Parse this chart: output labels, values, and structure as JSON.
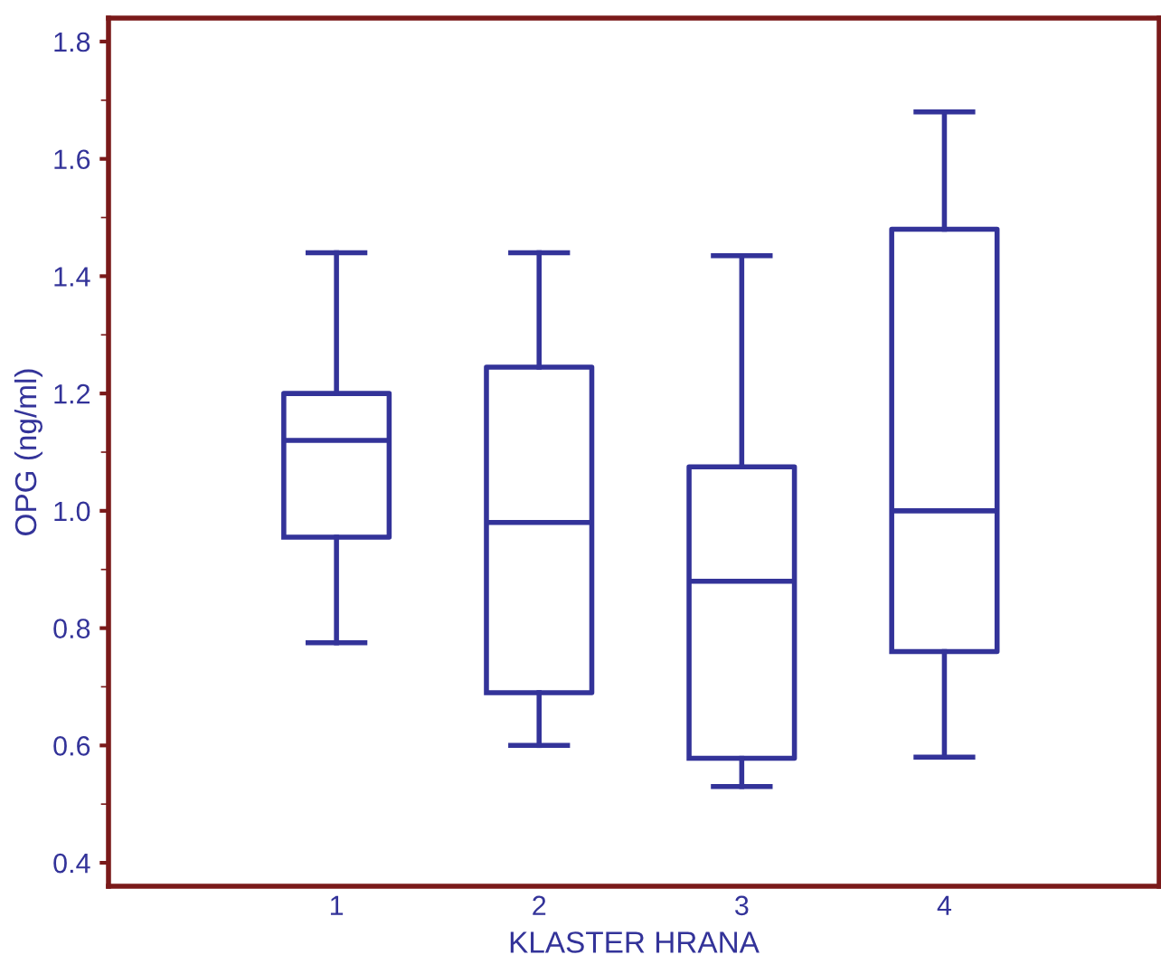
{
  "chart_data": {
    "type": "box",
    "xlabel": "KLASTER HRANA",
    "ylabel": "OPG (ng/ml)",
    "categories": [
      "1",
      "2",
      "3",
      "4"
    ],
    "color": "#333399",
    "boxes": [
      {
        "low": 0.775,
        "q1": 0.955,
        "median": 1.12,
        "q3": 1.2,
        "high": 1.44
      },
      {
        "low": 0.6,
        "q1": 0.69,
        "median": 0.98,
        "q3": 1.245,
        "high": 1.44
      },
      {
        "low": 0.53,
        "q1": 0.578,
        "median": 0.88,
        "q3": 1.075,
        "high": 1.435
      },
      {
        "low": 0.58,
        "q1": 0.76,
        "median": 1.0,
        "q3": 1.48,
        "high": 1.68
      }
    ],
    "ylim": [
      0.36,
      1.84
    ],
    "yticks": [
      0.4,
      0.6,
      0.8,
      {
        "value": 1.0,
        "label": "1.0"
      },
      1.2,
      1.4,
      1.6,
      1.8
    ],
    "grid": false
  }
}
